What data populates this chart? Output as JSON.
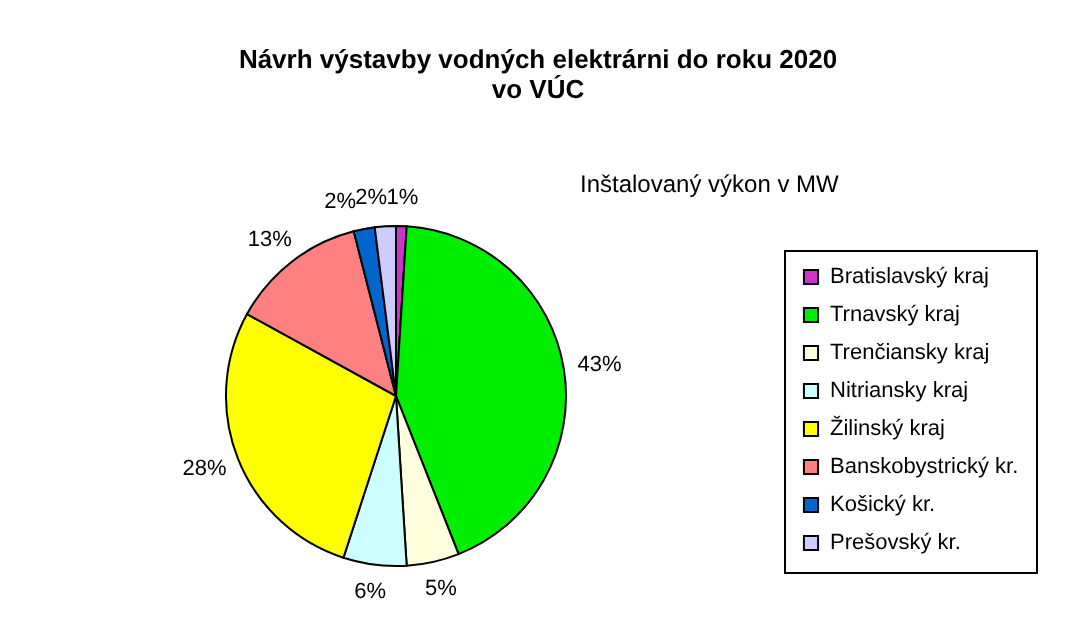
{
  "chart_data": {
    "type": "pie",
    "title": "Návrh výstavby vodných elektrárni do roku 2020\nvo VÚC",
    "annotations": [
      "Inštalovaný výkon v MW"
    ],
    "categories": [
      "Bratislavský kraj",
      "Trnavský kraj",
      "Trenčiansky kraj",
      "Nitriansky kraj",
      "Žilinský kraj",
      "Banskobystrický kr.",
      "Košický kr.",
      "Prešovský kr."
    ],
    "values": [
      1,
      43,
      5,
      6,
      28,
      13,
      2,
      2
    ],
    "value_labels": [
      "1%",
      "43%",
      "5%",
      "6%",
      "28%",
      "13%",
      "2%",
      "2%"
    ],
    "colors": [
      "#cc33cc",
      "#00ee00",
      "#ffffdd",
      "#ccffff",
      "#ffff00",
      "#ff8080",
      "#0066cc",
      "#ccccff"
    ],
    "legend": "right"
  }
}
